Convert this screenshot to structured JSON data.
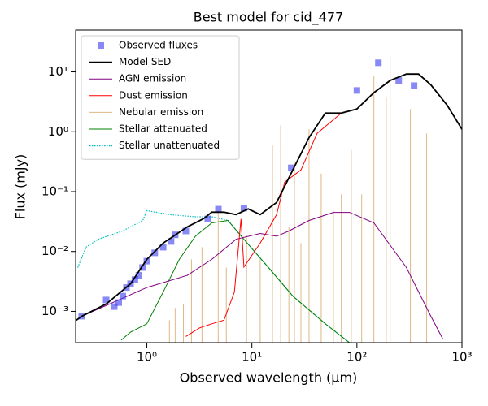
{
  "chart_data": {
    "type": "line",
    "title": "Best model for cid_477",
    "x_label": "Observed wavelength (μm)",
    "y_label": "Flux (mJy)",
    "x_scale": "log",
    "y_scale": "log",
    "xlim": [
      0.21,
      1000
    ],
    "ylim": [
      0.0003,
      50
    ],
    "xticks": [
      {
        "value": 1,
        "label": "10⁰"
      },
      {
        "value": 10,
        "label": "10¹"
      },
      {
        "value": 100,
        "label": "10²"
      },
      {
        "value": 1000,
        "label": "10³"
      }
    ],
    "yticks": [
      {
        "value": 0.001,
        "label": "10⁻³"
      },
      {
        "value": 0.01,
        "label": "10⁻²"
      },
      {
        "value": 0.1,
        "label": "10⁻¹"
      },
      {
        "value": 1,
        "label": "10⁰"
      },
      {
        "value": 10,
        "label": "10¹"
      }
    ],
    "legend": "upper left",
    "series": [
      {
        "name": "Observed fluxes",
        "kind": "scatter",
        "color": "#3b3bf0",
        "x": [
          0.24,
          0.41,
          0.49,
          0.54,
          0.59,
          0.64,
          0.7,
          0.77,
          0.84,
          0.91,
          1.0,
          1.19,
          1.43,
          1.7,
          1.86,
          2.35,
          3.8,
          4.8,
          8.4,
          23.7,
          100,
          160,
          250,
          350
        ],
        "values": [
          0.00083,
          0.00155,
          0.0012,
          0.0014,
          0.0018,
          0.0025,
          0.0029,
          0.0034,
          0.004,
          0.0054,
          0.0069,
          0.0095,
          0.0118,
          0.0147,
          0.019,
          0.022,
          0.035,
          0.051,
          0.053,
          0.25,
          4.9,
          14.2,
          7.2,
          5.9
        ]
      },
      {
        "name": "Model SED",
        "kind": "line",
        "color": "#000000",
        "x": [
          0.213,
          0.241,
          0.411,
          0.701,
          1,
          1.43,
          2.43,
          3.47,
          4.15,
          5.42,
          7.07,
          9.23,
          12,
          17.2,
          24.5,
          35,
          50,
          71,
          100,
          145,
          207,
          296,
          386,
          505,
          720,
          1000
        ],
        "values": [
          0.00071,
          0.00083,
          0.00133,
          0.0029,
          0.0074,
          0.0138,
          0.0258,
          0.0353,
          0.0454,
          0.0454,
          0.0413,
          0.0514,
          0.0413,
          0.066,
          0.23,
          0.8,
          2.05,
          2.05,
          2.4,
          4.5,
          7.2,
          9.2,
          9.2,
          6.1,
          2.8,
          1.1
        ]
      },
      {
        "name": "AGN emission",
        "kind": "line",
        "color": "#800080",
        "x": [
          0.241,
          1,
          2.43,
          4.15,
          7.07,
          12,
          17.2,
          22.5,
          35,
          59.7,
          85,
          145,
          296,
          505,
          655
        ],
        "values": [
          0.00083,
          0.0025,
          0.004,
          0.0074,
          0.016,
          0.02,
          0.018,
          0.022,
          0.033,
          0.045,
          0.045,
          0.03,
          0.0054,
          0.00083,
          0.00035
        ]
      },
      {
        "name": "Dust emission",
        "kind": "line",
        "color": "#ff0000",
        "x": [
          2.35,
          3.18,
          4.15,
          5.42,
          6.82,
          7.87,
          8.4,
          12,
          17.2,
          20.5,
          29.3,
          41.8,
          71,
          100,
          145,
          207,
          296,
          386,
          505,
          720,
          1000
        ],
        "values": [
          0.00038,
          0.00053,
          0.00062,
          0.00071,
          0.0021,
          0.035,
          0.0055,
          0.0138,
          0.0413,
          0.144,
          0.23,
          0.94,
          2.05,
          2.4,
          4.5,
          7.2,
          9.2,
          9.2,
          6.1,
          2.8,
          1.1
        ]
      },
      {
        "name": "Nebular emission",
        "kind": "stems",
        "color": "#deb887",
        "x": [
          1.64,
          1.86,
          2.23,
          2.66,
          3.35,
          4.78,
          5.71,
          8.9,
          12,
          15.7,
          18.8,
          22.5,
          25.4,
          29.3,
          35,
          45.7,
          59.7,
          71,
          88.3,
          111,
          145,
          190,
          207,
          323,
          461
        ],
        "values": [
          0.00071,
          0.00114,
          0.00133,
          0.0074,
          0.0118,
          0.048,
          0.0054,
          0.019,
          0.0074,
          0.59,
          1.28,
          0.0258,
          0.31,
          0.0138,
          1.1,
          0.2,
          0.048,
          0.09,
          0.5,
          0.09,
          8.4,
          3.8,
          18.3,
          2.4,
          0.94
        ]
      },
      {
        "name": "Stellar attenuated",
        "kind": "line",
        "color": "#008000",
        "x": [
          0.57,
          0.7,
          1,
          1.43,
          2.04,
          2.9,
          4.15,
          5.92,
          8.4,
          14.4,
          24.5,
          50,
          85
        ],
        "values": [
          0.00033,
          0.00045,
          0.00062,
          0.0021,
          0.0074,
          0.018,
          0.03,
          0.033,
          0.016,
          0.0054,
          0.0018,
          0.00062,
          0.0003
        ]
      },
      {
        "name": "Stellar unattenuated",
        "kind": "dotted",
        "color": "#00bfbf",
        "x": [
          0.22,
          0.264,
          0.344,
          0.586,
          0.915,
          1,
          1.7,
          2.9,
          4.15,
          5.92,
          8.4,
          14.4,
          24.5,
          50,
          85
        ],
        "values": [
          0.0054,
          0.0118,
          0.016,
          0.022,
          0.033,
          0.048,
          0.041,
          0.038,
          0.038,
          0.033,
          0.016,
          0.0054,
          0.0018,
          0.00062,
          0.0003
        ]
      }
    ]
  }
}
